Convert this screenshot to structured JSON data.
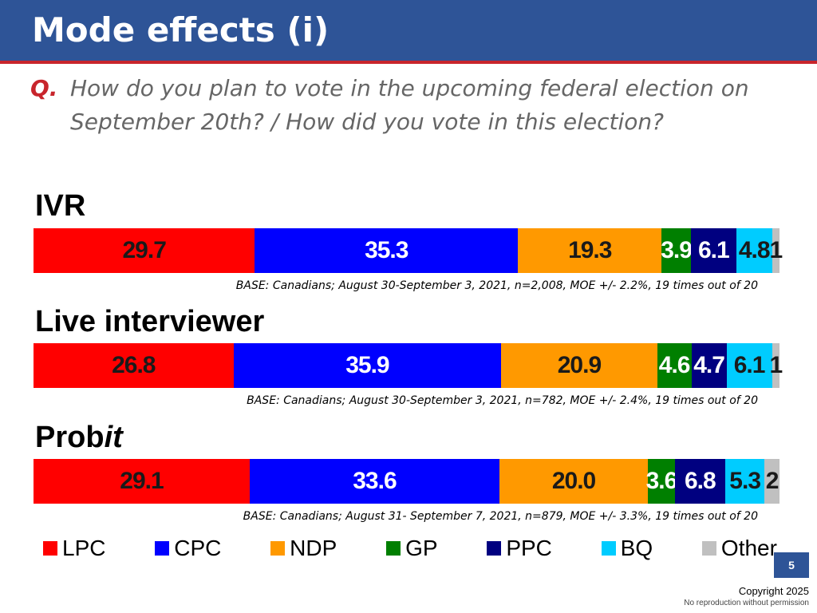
{
  "slide": {
    "title": "Mode effects (i)",
    "question_marker": "Q.",
    "question": "How do you plan to vote in the upcoming federal election on September 20th? / How did you vote in this election?",
    "page_number": "5",
    "copyright": "Copyright 2025",
    "no_reproduction": "No reproduction without permission"
  },
  "colors": {
    "header": "#2e5497",
    "header_rule": "#c8252c",
    "LPC": "#ff0000",
    "CPC": "#0000ff",
    "NDP": "#ff9900",
    "GP": "#007f00",
    "PPC": "#000080",
    "BQ": "#00ccff",
    "Other": "#c0c0c0"
  },
  "chart_data": {
    "type": "bar",
    "orientation": "horizontal",
    "stacked": true,
    "categories": [
      "LPC",
      "CPC",
      "NDP",
      "GP",
      "PPC",
      "BQ",
      "Other"
    ],
    "legend_position": "bottom",
    "groups": [
      {
        "label_parts": [
          {
            "text": "IVR",
            "italic": false
          }
        ],
        "values": [
          29.7,
          35.3,
          19.3,
          3.9,
          6.1,
          4.8,
          1
        ],
        "labels": [
          "29.7",
          "35.3",
          "19.3",
          "3.9",
          "6.1",
          "4.8",
          "1"
        ],
        "base": "BASE: Canadians; August 30-September 3, 2021, n=2,008, MOE +/- 2.2%, 19 times out of 20"
      },
      {
        "label_parts": [
          {
            "text": "Live interviewer",
            "italic": false
          }
        ],
        "values": [
          26.8,
          35.9,
          20.9,
          4.6,
          4.7,
          6.1,
          1
        ],
        "labels": [
          "26.8",
          "35.9",
          "20.9",
          "4.6",
          "4.7",
          "6.1",
          "1"
        ],
        "base": "BASE: Canadians; August 30-September 3, 2021, n=782, MOE +/- 2.4%, 19 times out of 20"
      },
      {
        "label_parts": [
          {
            "text": "Prob",
            "italic": false
          },
          {
            "text": "it",
            "italic": true
          }
        ],
        "values": [
          29.1,
          33.6,
          20.0,
          3.6,
          6.8,
          5.3,
          2
        ],
        "labels": [
          "29.1",
          "33.6",
          "20.0",
          "3.6",
          "6.8",
          "5.3",
          "2"
        ],
        "base": "BASE: Canadians; August 31- September 7, 2021, n=879, MOE +/- 3.3%, 19 times out of 20"
      }
    ]
  }
}
